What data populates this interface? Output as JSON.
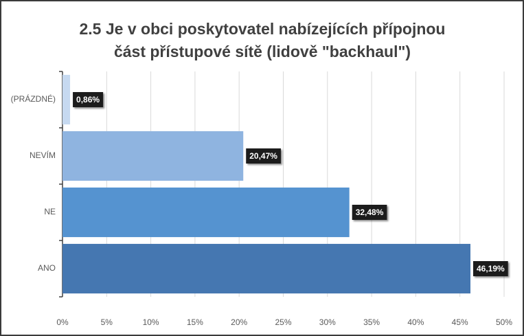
{
  "chart_data": {
    "type": "barh",
    "title": "2.5 Je v obci poskytovatel nabízejících přípojnou část přístupové sítě (lidově \"backhaul\")",
    "categories": [
      "(PRÁZDNÉ)",
      "NEVÍM",
      "NE",
      "ANO"
    ],
    "values": [
      0.86,
      20.47,
      32.48,
      46.19
    ],
    "value_labels": [
      "0,86%",
      "20,47%",
      "32,48%",
      "46,19%"
    ],
    "colors": [
      "#c6d9f0",
      "#8fb4e0",
      "#5593d0",
      "#4577b1"
    ],
    "xlim": [
      0,
      50
    ],
    "xticks": [
      {
        "value": 0,
        "label": "0%"
      },
      {
        "value": 5,
        "label": "5%"
      },
      {
        "value": 10,
        "label": "10%"
      },
      {
        "value": 15,
        "label": "15%"
      },
      {
        "value": 20,
        "label": "20%"
      },
      {
        "value": 25,
        "label": "25%"
      },
      {
        "value": 30,
        "label": "30%"
      },
      {
        "value": 35,
        "label": "35%"
      },
      {
        "value": 40,
        "label": "40%"
      },
      {
        "value": 45,
        "label": "45%"
      },
      {
        "value": 50,
        "label": "50%"
      }
    ],
    "grid": true
  }
}
